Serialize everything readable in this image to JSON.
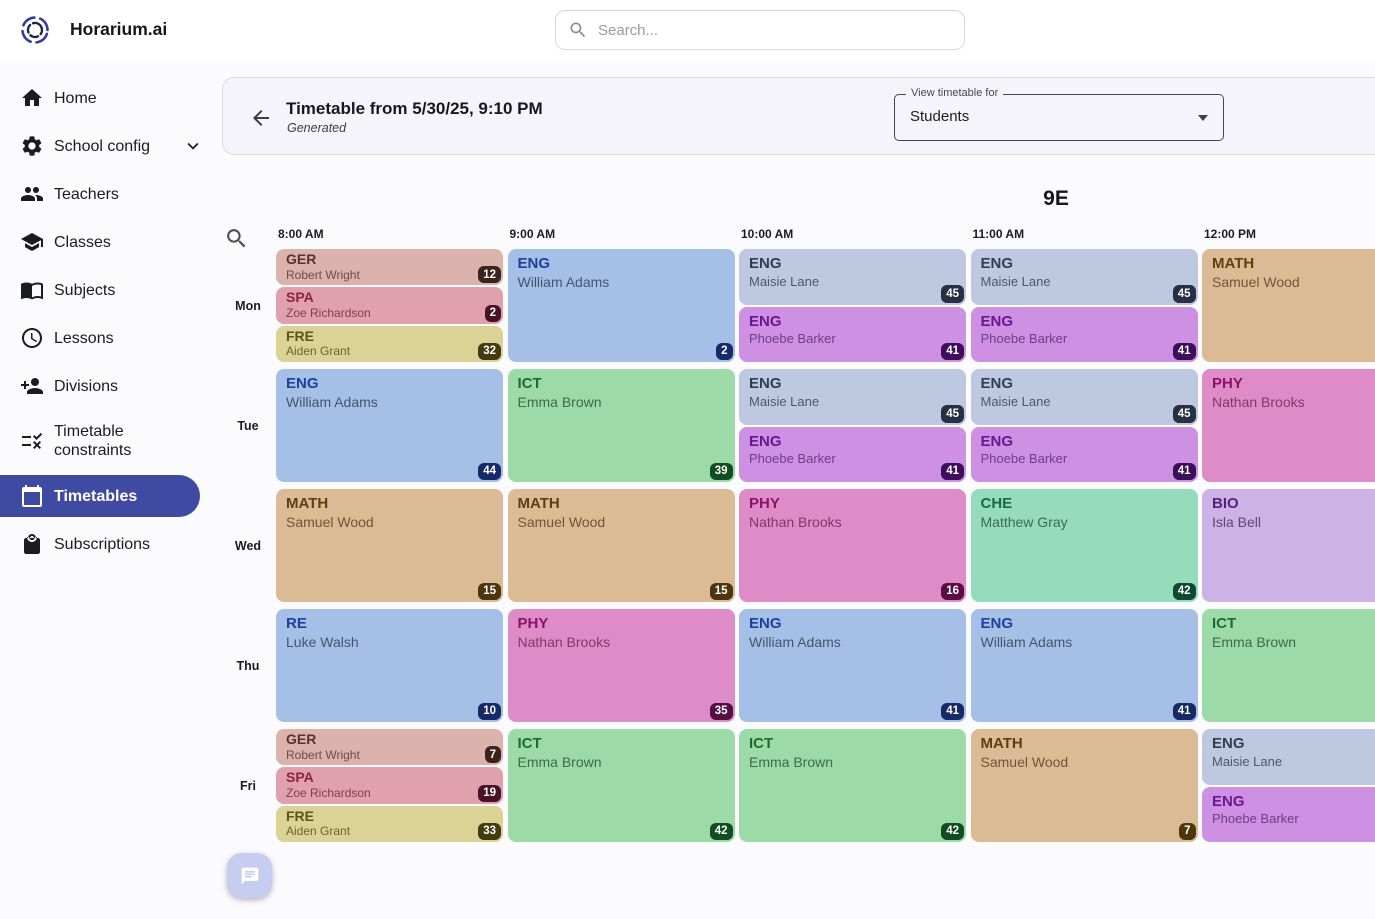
{
  "app": {
    "title": "Horarium.ai",
    "accent_color": "#3f4ba3",
    "logo_icon": "swirl-logo-icon"
  },
  "topbar": {
    "search_placeholder": "Search..."
  },
  "sidebar": {
    "items": [
      {
        "label": "Home",
        "icon": "home-icon",
        "selected": false,
        "expandable": false
      },
      {
        "label": "School config",
        "icon": "gear-icon",
        "selected": false,
        "expandable": true
      },
      {
        "label": "Teachers",
        "icon": "people-icon",
        "selected": false,
        "expandable": false
      },
      {
        "label": "Classes",
        "icon": "graduation-cap-icon",
        "selected": false,
        "expandable": false
      },
      {
        "label": "Subjects",
        "icon": "book-icon",
        "selected": false,
        "expandable": false
      },
      {
        "label": "Lessons",
        "icon": "clock-icon",
        "selected": false,
        "expandable": false
      },
      {
        "label": "Divisions",
        "icon": "person-add-icon",
        "selected": false,
        "expandable": false
      },
      {
        "label": "Timetable constraints",
        "icon": "constraints-icon",
        "selected": false,
        "expandable": false
      },
      {
        "label": "Timetables",
        "icon": "calendar-icon",
        "selected": true,
        "expandable": false
      },
      {
        "label": "Subscriptions",
        "icon": "bag-icon",
        "selected": false,
        "expandable": false
      }
    ]
  },
  "header": {
    "back_icon": "arrow-back-icon",
    "title": "Timetable from 5/30/25, 9:10 PM",
    "subtitle": "Generated",
    "view_selector": {
      "label": "View timetable for",
      "value": "Students"
    }
  },
  "timetable": {
    "class_name": "9E",
    "times": [
      "8:00 AM",
      "9:00 AM",
      "10:00 AM",
      "11:00 AM",
      "12:00 PM"
    ],
    "palette": {
      "rose": {
        "bg": "#dbb2ac",
        "title": "#5a3330",
        "teacher": "#6d4c48",
        "badge": "#3a221d"
      },
      "pink": {
        "bg": "#e0a0ae",
        "title": "#8e2242",
        "teacher": "#7d4050",
        "badge": "#471325"
      },
      "khaki": {
        "bg": "#dbd395",
        "title": "#5d5513",
        "teacher": "#6d6529",
        "badge": "#433c0e"
      },
      "blue": {
        "bg": "#a6bfe7",
        "title": "#20409a",
        "teacher": "#44546e",
        "badge": "#152a66"
      },
      "periwinkle": {
        "bg": "#bec9e1",
        "title": "#323d55",
        "teacher": "#4d5769",
        "badge": "#272f42"
      },
      "orchid": {
        "bg": "#cd90e2",
        "title": "#6b1693",
        "teacher": "#6f3d86",
        "badge": "#3c0d59"
      },
      "green": {
        "bg": "#9cdba7",
        "title": "#1d6c31",
        "teacher": "#41694b",
        "badge": "#114c22"
      },
      "tan": {
        "bg": "#dbbb95",
        "title": "#5e3f11",
        "teacher": "#6d5637",
        "badge": "#4c370d"
      },
      "magenta": {
        "bg": "#de8cc7",
        "title": "#8e1169",
        "teacher": "#7d3a68",
        "badge": "#570e44"
      },
      "mint": {
        "bg": "#96dbbb",
        "title": "#186a4b",
        "teacher": "#3c6a58",
        "badge": "#0e4a32"
      },
      "lilac": {
        "bg": "#cdb2e6",
        "title": "#55217f",
        "teacher": "#5f4476",
        "badge": "#3a1458"
      }
    },
    "rows": [
      {
        "day": "Mon",
        "cells": [
          [
            {
              "subject": "GER",
              "teacher": "Robert Wright",
              "badge": "12",
              "color": "rose"
            },
            {
              "subject": "SPA",
              "teacher": "Zoe Richardson",
              "badge": "2",
              "color": "pink"
            },
            {
              "subject": "FRE",
              "teacher": "Aiden Grant",
              "badge": "32",
              "color": "khaki"
            }
          ],
          [
            {
              "subject": "ENG",
              "teacher": "William Adams",
              "badge": "2",
              "color": "blue"
            }
          ],
          [
            {
              "subject": "ENG",
              "teacher": "Maisie Lane",
              "badge": "45",
              "color": "periwinkle"
            },
            {
              "subject": "ENG",
              "teacher": "Phoebe Barker",
              "badge": "41",
              "color": "orchid"
            }
          ],
          [
            {
              "subject": "ENG",
              "teacher": "Maisie Lane",
              "badge": "45",
              "color": "periwinkle"
            },
            {
              "subject": "ENG",
              "teacher": "Phoebe Barker",
              "badge": "41",
              "color": "orchid"
            }
          ],
          [
            {
              "subject": "MATH",
              "teacher": "Samuel Wood",
              "badge": null,
              "color": "tan"
            }
          ]
        ]
      },
      {
        "day": "Tue",
        "cells": [
          [
            {
              "subject": "ENG",
              "teacher": "William Adams",
              "badge": "44",
              "color": "blue"
            }
          ],
          [
            {
              "subject": "ICT",
              "teacher": "Emma Brown",
              "badge": "39",
              "color": "green"
            }
          ],
          [
            {
              "subject": "ENG",
              "teacher": "Maisie Lane",
              "badge": "45",
              "color": "periwinkle"
            },
            {
              "subject": "ENG",
              "teacher": "Phoebe Barker",
              "badge": "41",
              "color": "orchid"
            }
          ],
          [
            {
              "subject": "ENG",
              "teacher": "Maisie Lane",
              "badge": "45",
              "color": "periwinkle"
            },
            {
              "subject": "ENG",
              "teacher": "Phoebe Barker",
              "badge": "41",
              "color": "orchid"
            }
          ],
          [
            {
              "subject": "PHY",
              "teacher": "Nathan Brooks",
              "badge": null,
              "color": "magenta"
            }
          ]
        ]
      },
      {
        "day": "Wed",
        "cells": [
          [
            {
              "subject": "MATH",
              "teacher": "Samuel Wood",
              "badge": "15",
              "color": "tan"
            }
          ],
          [
            {
              "subject": "MATH",
              "teacher": "Samuel Wood",
              "badge": "15",
              "color": "tan"
            }
          ],
          [
            {
              "subject": "PHY",
              "teacher": "Nathan Brooks",
              "badge": "16",
              "color": "magenta"
            }
          ],
          [
            {
              "subject": "CHE",
              "teacher": "Matthew Gray",
              "badge": "42",
              "color": "mint"
            }
          ],
          [
            {
              "subject": "BIO",
              "teacher": "Isla Bell",
              "badge": null,
              "color": "lilac"
            }
          ]
        ]
      },
      {
        "day": "Thu",
        "cells": [
          [
            {
              "subject": "RE",
              "teacher": "Luke Walsh",
              "badge": "10",
              "color": "blue"
            }
          ],
          [
            {
              "subject": "PHY",
              "teacher": "Nathan Brooks",
              "badge": "35",
              "color": "magenta"
            }
          ],
          [
            {
              "subject": "ENG",
              "teacher": "William Adams",
              "badge": "41",
              "color": "blue"
            }
          ],
          [
            {
              "subject": "ENG",
              "teacher": "William Adams",
              "badge": "41",
              "color": "blue"
            }
          ],
          [
            {
              "subject": "ICT",
              "teacher": "Emma Brown",
              "badge": null,
              "color": "green"
            }
          ]
        ]
      },
      {
        "day": "Fri",
        "cells": [
          [
            {
              "subject": "GER",
              "teacher": "Robert Wright",
              "badge": "7",
              "color": "rose"
            },
            {
              "subject": "SPA",
              "teacher": "Zoe Richardson",
              "badge": "19",
              "color": "pink"
            },
            {
              "subject": "FRE",
              "teacher": "Aiden Grant",
              "badge": "33",
              "color": "khaki"
            }
          ],
          [
            {
              "subject": "ICT",
              "teacher": "Emma Brown",
              "badge": "42",
              "color": "green"
            }
          ],
          [
            {
              "subject": "ICT",
              "teacher": "Emma Brown",
              "badge": "42",
              "color": "green"
            }
          ],
          [
            {
              "subject": "MATH",
              "teacher": "Samuel Wood",
              "badge": "7",
              "color": "tan"
            }
          ],
          [
            {
              "subject": "ENG",
              "teacher": "Maisie Lane",
              "badge": null,
              "color": "periwinkle"
            },
            {
              "subject": "ENG",
              "teacher": "Phoebe Barker",
              "badge": null,
              "color": "orchid"
            }
          ]
        ]
      }
    ]
  },
  "fab": {
    "icon": "chat-icon"
  }
}
